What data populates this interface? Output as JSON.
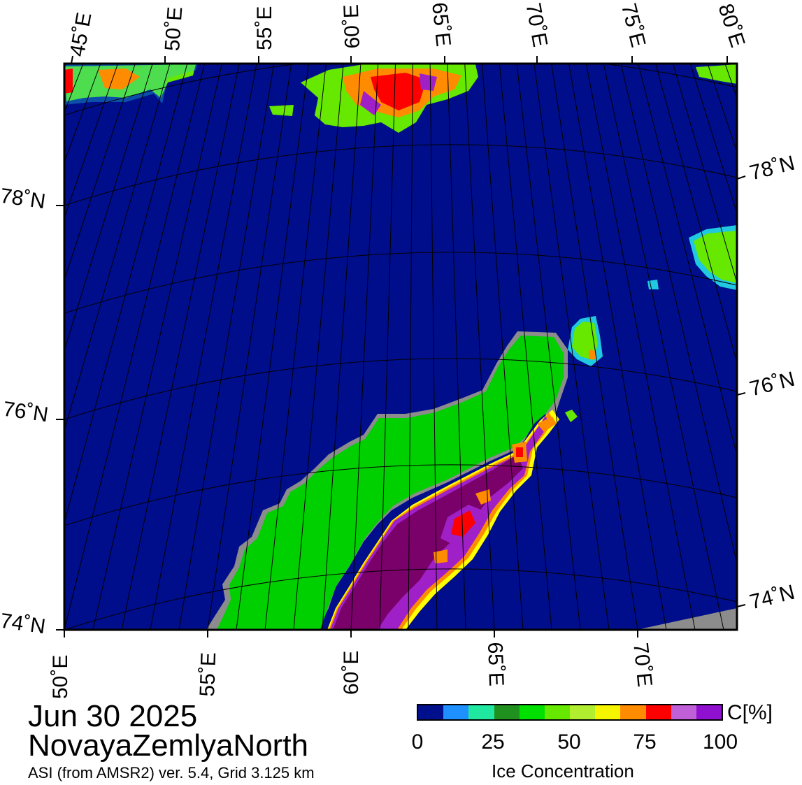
{
  "title": {
    "date": "Jun 30 2025",
    "region": "NovayaZemlyaNorth",
    "source": "ASI (from AMSR2) ver. 5.4,  Grid 3.125 km"
  },
  "top_lon_labels": [
    "45˚E",
    "50˚E",
    "55˚E",
    "60˚E",
    "65˚E",
    "70˚E",
    "75˚E",
    "80˚E"
  ],
  "bottom_lon_labels": [
    "50˚E",
    "55˚E",
    "60˚E",
    "65˚E",
    "70˚E"
  ],
  "left_lat_labels": [
    "78˚N",
    "76˚N",
    "74˚N"
  ],
  "right_lat_labels": [
    "78˚N",
    "76˚N",
    "74˚N"
  ],
  "legend": {
    "unit": "C[%]",
    "title": "Ice Concentration",
    "ticks": [
      "0",
      "25",
      "50",
      "75",
      "100"
    ],
    "colors": [
      "#00108c",
      "#1e90ff",
      "#20e8a0",
      "#20901e",
      "#00e000",
      "#66e800",
      "#b2ee30",
      "#f5f500",
      "#ff8c00",
      "#ff0000",
      "#c060d8",
      "#9010d0"
    ]
  },
  "map_colors": {
    "ocean": "#000e8c",
    "land": "#00d000",
    "land_mask": "#8c8c8c",
    "ice_high": "#7a006a",
    "ice_mid": "#a020c8",
    "ice_edge_red": "#ff0000",
    "ice_edge_orange": "#ff8c00",
    "ice_edge_yellow": "#ffff00",
    "ice_low": "#66e800",
    "ice_cyan": "#20c8e0"
  }
}
